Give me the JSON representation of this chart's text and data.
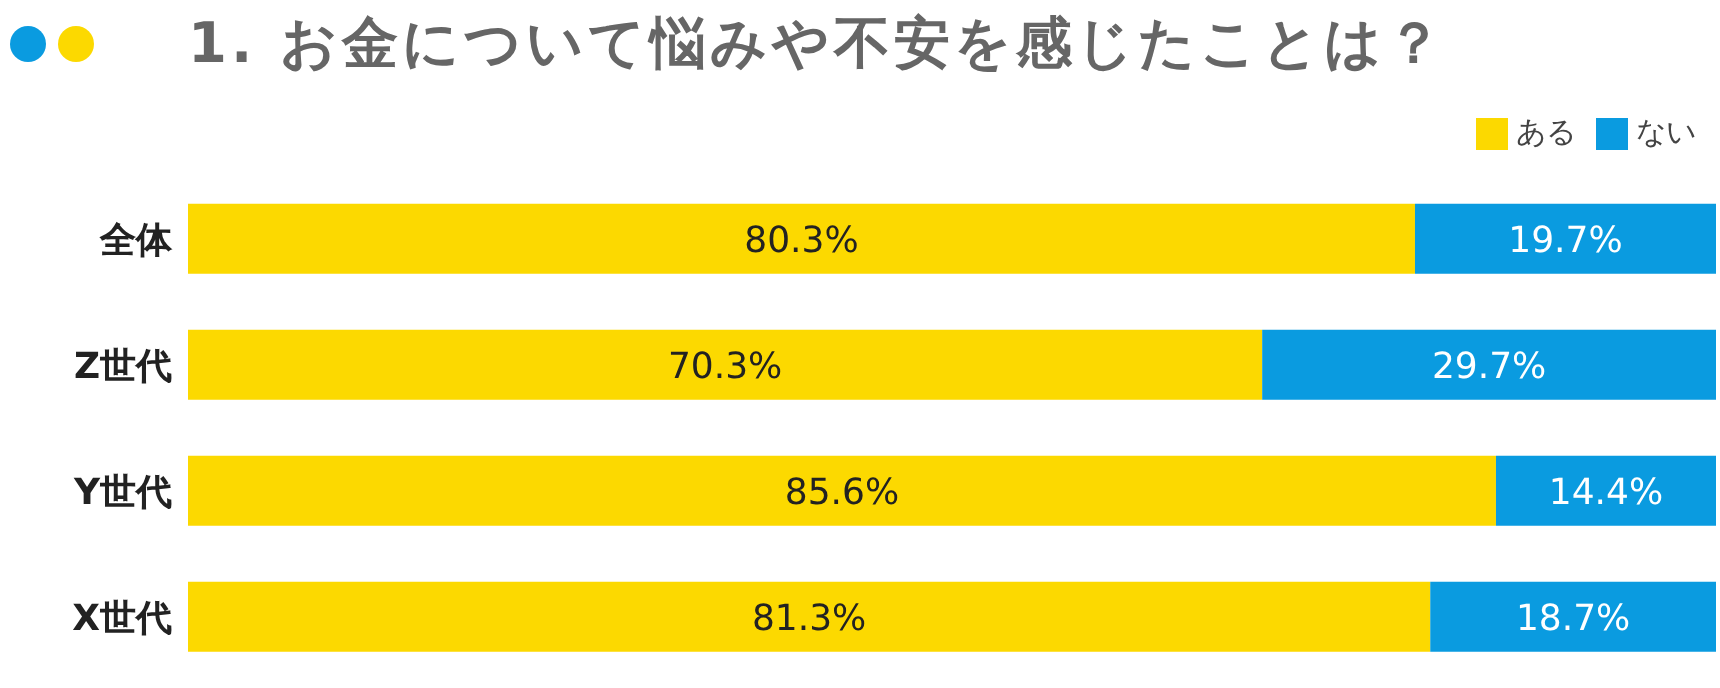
{
  "chart_data": {
    "type": "bar",
    "title": "1. お金について悩みや不安を感じたことは？",
    "orientation": "horizontal",
    "stacked": true,
    "categories": [
      "全体",
      "Z世代",
      "Y世代",
      "X世代"
    ],
    "series": [
      {
        "name": "ある",
        "color": "#fcd900",
        "values": [
          80.3,
          70.3,
          85.6,
          81.3
        ],
        "value_labels": [
          "80.3%",
          "70.3%",
          "85.6%",
          "81.3%"
        ]
      },
      {
        "name": "ない",
        "color": "#0a9be0",
        "values": [
          19.7,
          29.7,
          14.4,
          18.7
        ],
        "value_labels": [
          "19.7%",
          "29.7%",
          "14.4%",
          "18.7%"
        ]
      }
    ],
    "legend": "top right",
    "grid": false
  }
}
